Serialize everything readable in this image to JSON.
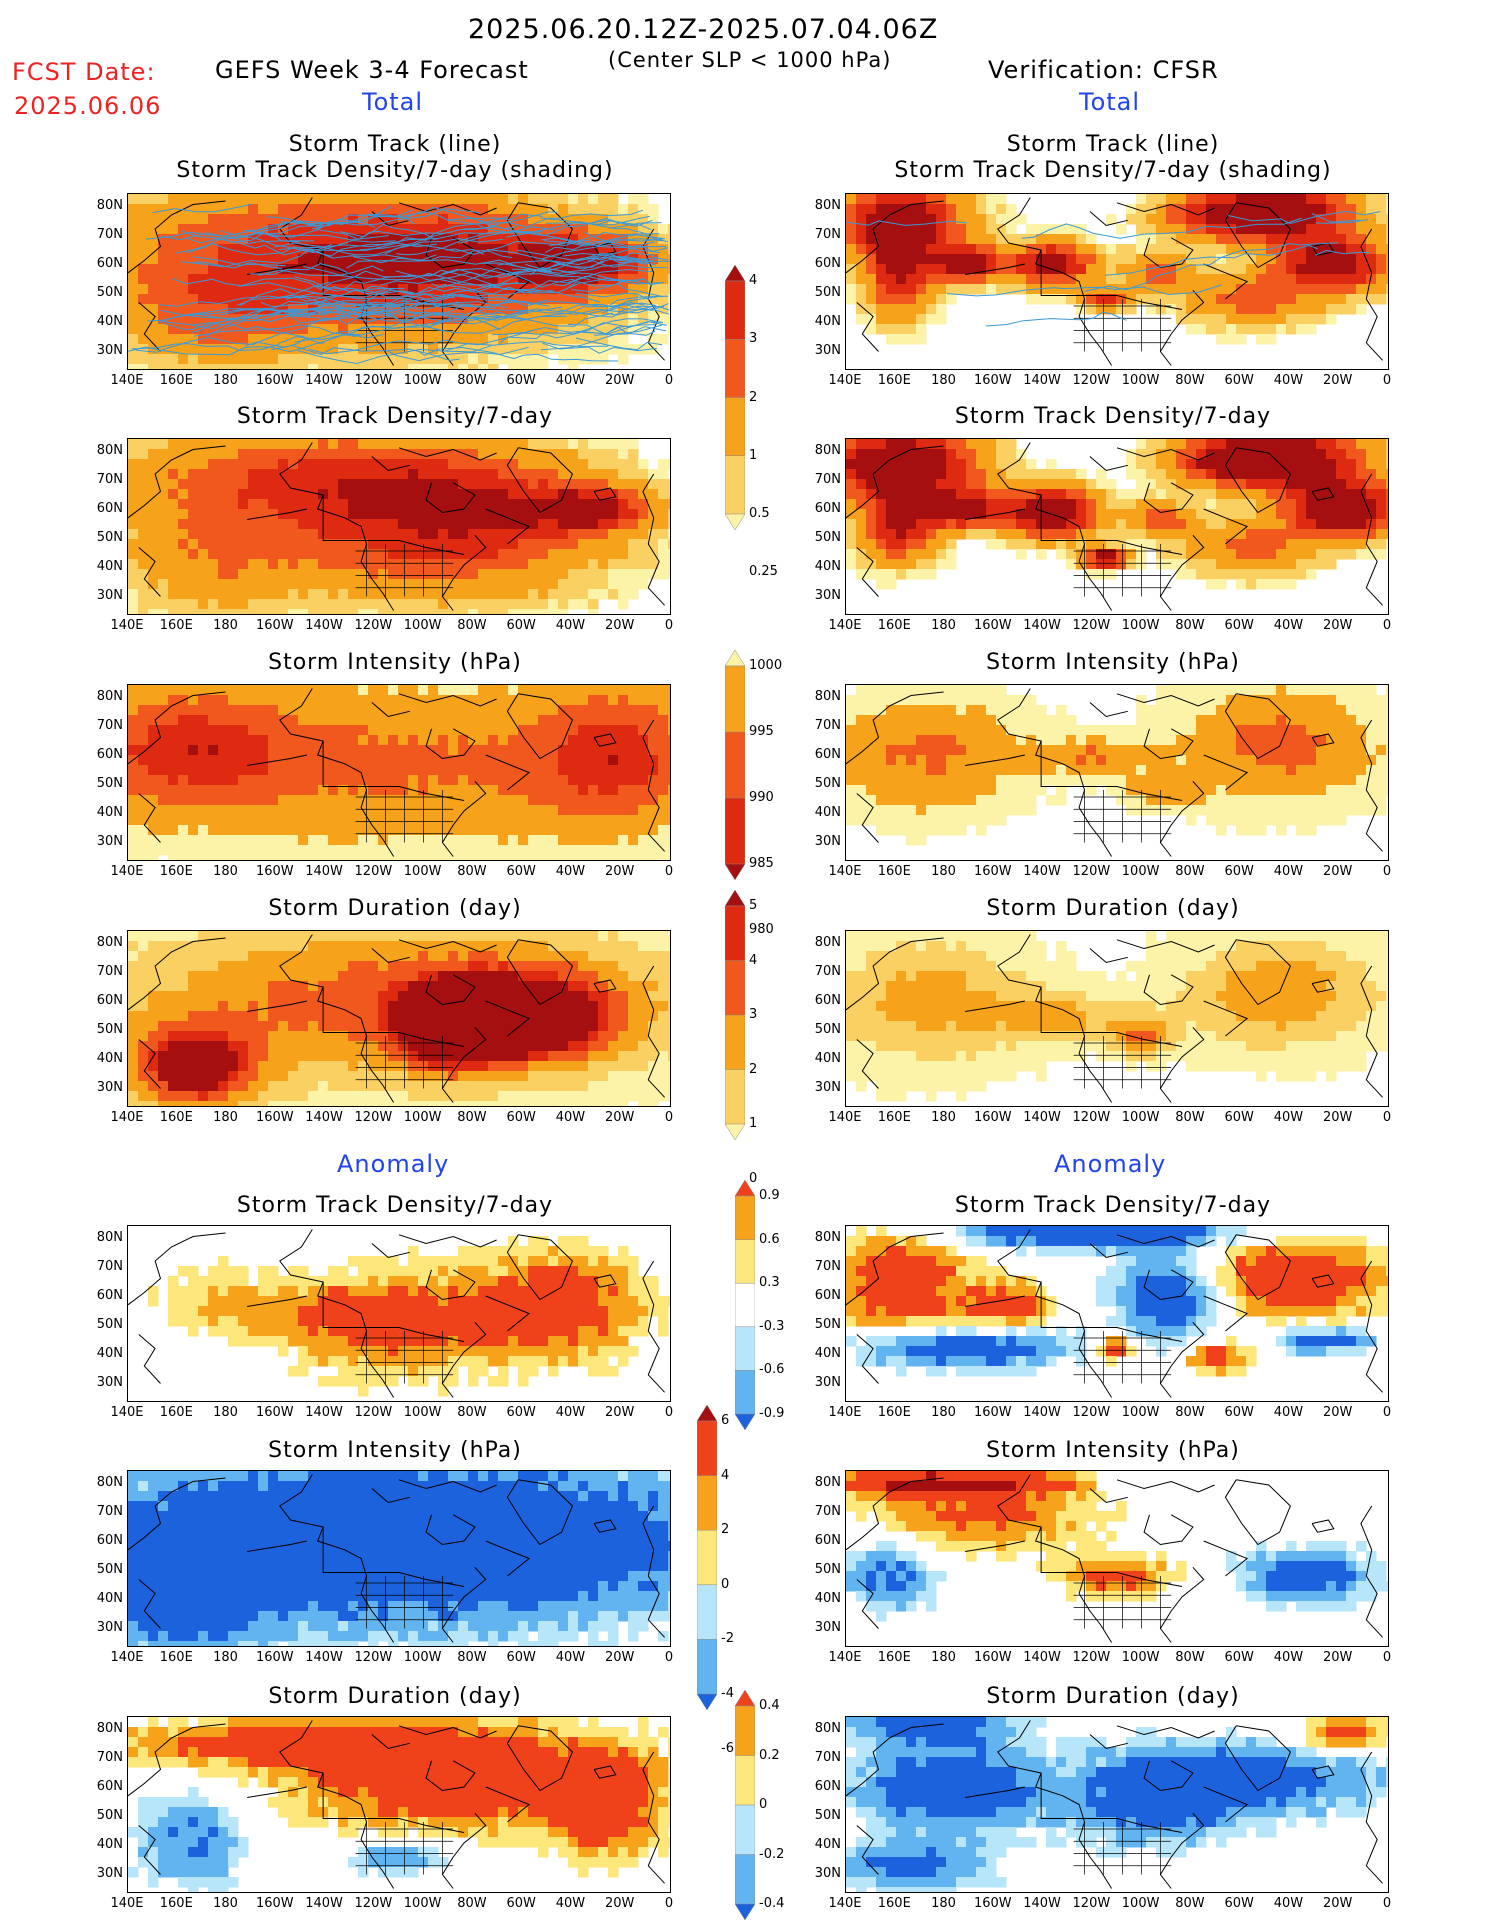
{
  "header": {
    "period": "2025.06.20.12Z-2025.07.04.06Z",
    "subtitle": "(Center SLP < 1000 hPa)",
    "fcst_label": "FCST Date:",
    "fcst_date": "2025.06.06",
    "left_title": "GEFS Week 3-4 Forecast",
    "right_title": "Verification: CFSR",
    "section_total": "Total",
    "section_anomaly": "Anomaly"
  },
  "panel_titles": {
    "track_line": "Storm Track (line)",
    "track_shading": "Storm Track Density/7-day (shading)",
    "density": "Storm Track Density/7-day",
    "intensity": "Storm Intensity (hPa)",
    "duration": "Storm Duration (day)"
  },
  "lat_labels": [
    "80N",
    "70N",
    "60N",
    "50N",
    "40N",
    "30N"
  ],
  "lon_labels": [
    "140E",
    "160E",
    "180",
    "160W",
    "140W",
    "120W",
    "100W",
    "80W",
    "60W",
    "40W",
    "20W",
    "0"
  ],
  "colorbars": {
    "density_total": {
      "labels": [
        "4",
        "3",
        "2",
        "1",
        "0.5",
        "0.25"
      ],
      "colors": [
        "#a50f0f",
        "#dd2a10",
        "#f0581d",
        "#f7a21b",
        "#fbd063",
        "#fdf3a8"
      ]
    },
    "intensity_total": {
      "labels": [
        "1000",
        "995",
        "990",
        "985",
        "980"
      ],
      "colors": [
        "#fdf3a8",
        "#f7a21b",
        "#f0581d",
        "#dd2a10",
        "#a50f0f"
      ]
    },
    "duration_total": {
      "labels": [
        "5",
        "4",
        "3",
        "2",
        "1",
        "0"
      ],
      "colors": [
        "#a50f0f",
        "#dd2a10",
        "#f0581d",
        "#f7a21b",
        "#fbd063",
        "#fdf3a8"
      ]
    },
    "density_anom": {
      "labels": [
        "0.9",
        "0.6",
        "0.3",
        "-0.3",
        "-0.6",
        "-0.9"
      ],
      "colors": [
        "#f0421a",
        "#f7a21b",
        "#fde67a",
        "#ffffff",
        "#b7e6fb",
        "#62b4f0",
        "#1d62dd"
      ]
    },
    "intensity_anom": {
      "labels": [
        "6",
        "4",
        "2",
        "0",
        "-2",
        "-4",
        "-6"
      ],
      "colors": [
        "#a50f0f",
        "#f0421a",
        "#f7a21b",
        "#fde67a",
        "#b7e6fb",
        "#62b4f0",
        "#1d62dd"
      ]
    },
    "duration_anom": {
      "labels": [
        "0.4",
        "0.2",
        "0",
        "-0.2",
        "-0.4"
      ],
      "colors": [
        "#f0421a",
        "#f7a21b",
        "#fde67a",
        "#b7e6fb",
        "#62b4f0",
        "#1d62dd"
      ]
    }
  }
}
